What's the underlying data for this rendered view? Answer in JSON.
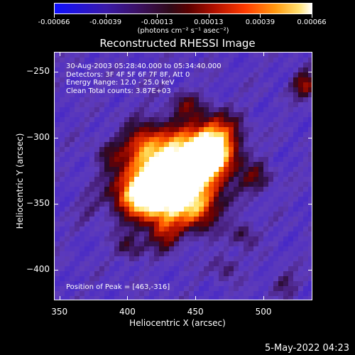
{
  "colorbar": {
    "tick_labels": [
      "-0.00066",
      "-0.00039",
      "-0.00013",
      "0.00013",
      "0.00039",
      "0.00066"
    ],
    "units": "(photons cm⁻² s⁻¹ asec⁻²)"
  },
  "chart_data": {
    "type": "heatmap",
    "title": "Reconstructed RHESSI Image",
    "xlabel": "Heliocentric X (arcsec)",
    "ylabel": "Heliocentric Y (arcsec)",
    "xlim": [
      346,
      536
    ],
    "ylim": [
      -423,
      -235
    ],
    "x_ticks": [
      "350",
      "400",
      "450",
      "500"
    ],
    "y_ticks": [
      "-250",
      "-300",
      "-350",
      "-400"
    ],
    "colorbar_range": [
      -0.00066,
      0.00066
    ],
    "peak": [
      463,
      -316
    ],
    "annotations": [
      "30-Aug-2003 05:28:40.000 to 05:34:40.000",
      "Detectors: 3F 4F 5F 6F 7F 8F, Att 0",
      "Energy Range: 12.0 - 25.0 keV",
      "Clean     Total counts: 3.87E+03"
    ],
    "peak_label": "Position of Peak = [463,-316]"
  },
  "footer": {
    "date": "5-May-2022 04:23"
  }
}
